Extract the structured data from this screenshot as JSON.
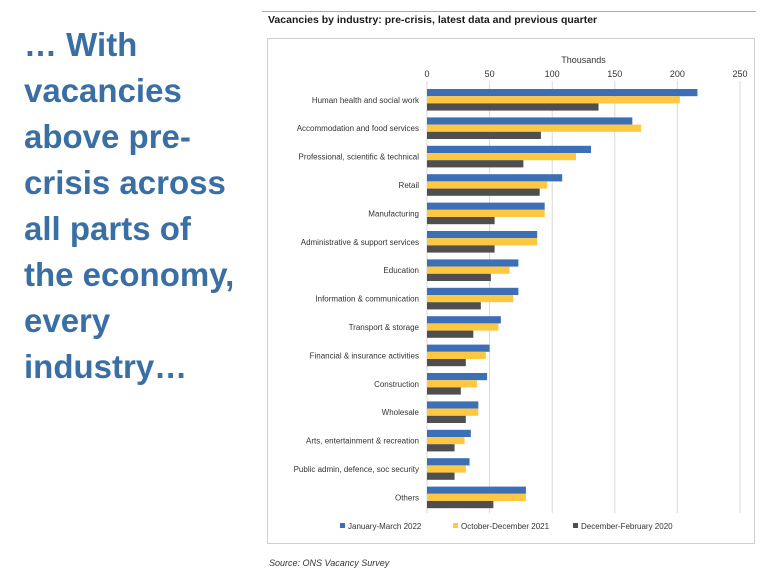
{
  "headline": "… With\nvacancies\nabove pre-\ncrisis across\nall parts of\nthe economy,\nevery\nindustry…",
  "source_text": "Source: ONS Vacancy Survey",
  "chart_data": {
    "type": "bar",
    "orientation": "horizontal",
    "title": "Vacancies by industry: pre-crisis, latest data and previous quarter",
    "axis_title": "Thousands",
    "xlim": [
      0,
      250
    ],
    "xticks": [
      0,
      50,
      100,
      150,
      200,
      250
    ],
    "grid": true,
    "legend_position": "bottom",
    "categories": [
      "Human health and social work",
      "Accommodation and food services",
      "Professional, scientific & technical",
      "Retail",
      "Manufacturing",
      "Administrative & support services",
      "Education",
      "Information & communication",
      "Transport & storage",
      "Financial & insurance activities",
      "Construction",
      "Wholesale",
      "Arts, entertainment & recreation",
      "Public admin, defence, soc security",
      "Others"
    ],
    "series": [
      {
        "name": "January-March 2022",
        "color": "#3d6fb6",
        "values": [
          216,
          164,
          131,
          108,
          94,
          88,
          73,
          73,
          59,
          50,
          48,
          41,
          35,
          34,
          79
        ]
      },
      {
        "name": "October-December 2021",
        "color": "#ffc840",
        "values": [
          202,
          171,
          119,
          96,
          94,
          88,
          66,
          69,
          57,
          47,
          40,
          41,
          30,
          31,
          79
        ]
      },
      {
        "name": "December-February 2020",
        "color": "#4f4f4f",
        "values": [
          137,
          91,
          77,
          90,
          54,
          54,
          51,
          43,
          37,
          31,
          27,
          31,
          22,
          22,
          53
        ]
      }
    ]
  }
}
